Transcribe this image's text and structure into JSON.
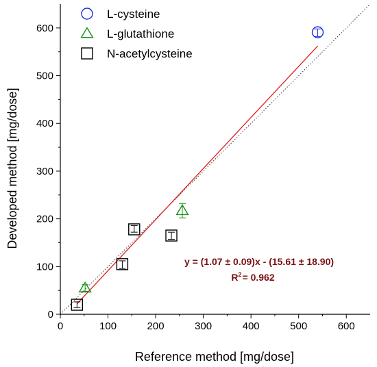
{
  "chart_data": {
    "type": "scatter",
    "xlabel": "Reference method [mg/dose]",
    "ylabel": "Developed method [mg/dose]",
    "xlim": [
      0,
      650
    ],
    "ylim": [
      0,
      650
    ],
    "xticks": [
      0,
      100,
      200,
      300,
      400,
      500,
      600
    ],
    "yticks": [
      0,
      100,
      200,
      300,
      400,
      500,
      600
    ],
    "grid": false,
    "legend_position": "top-left",
    "series": [
      {
        "name": "L-cysteine",
        "marker": "circle",
        "color": "#1f2ee0",
        "points": [
          {
            "x": 540,
            "y": 591,
            "yerr_low": 582,
            "yerr_high": 598
          }
        ]
      },
      {
        "name": "L-glutathione",
        "marker": "triangle",
        "color": "#1a8f1a",
        "points": [
          {
            "x": 256,
            "y": 217,
            "yerr_low": 202,
            "yerr_high": 232
          },
          {
            "x": 52,
            "y": 55,
            "yerr_low": 48,
            "yerr_high": 62
          }
        ]
      },
      {
        "name": "N-acetylcysteine",
        "marker": "square",
        "color": "#000000",
        "points": [
          {
            "x": 35,
            "y": 20,
            "yerr_low": 14,
            "yerr_high": 26
          },
          {
            "x": 130,
            "y": 105,
            "yerr_low": 96,
            "yerr_high": 112
          },
          {
            "x": 155,
            "y": 178,
            "yerr_low": 172,
            "yerr_high": 186
          },
          {
            "x": 233,
            "y": 165,
            "yerr_low": 157,
            "yerr_high": 172
          }
        ]
      }
    ],
    "fit_line": {
      "color": "#e01b1b",
      "slope": 1.07,
      "intercept": -15.61,
      "x_start": 35,
      "x_end": 540
    },
    "identity_line": {
      "style": "dotted",
      "color": "#333333"
    },
    "annotation": {
      "equation": "y = (1.07 ± 0.09)x - (15.61 ± 18.90)",
      "r2_prefix": "R",
      "r2_sup": "2",
      "r2_suffix": "= 0.962",
      "color": "#7a1010"
    }
  }
}
